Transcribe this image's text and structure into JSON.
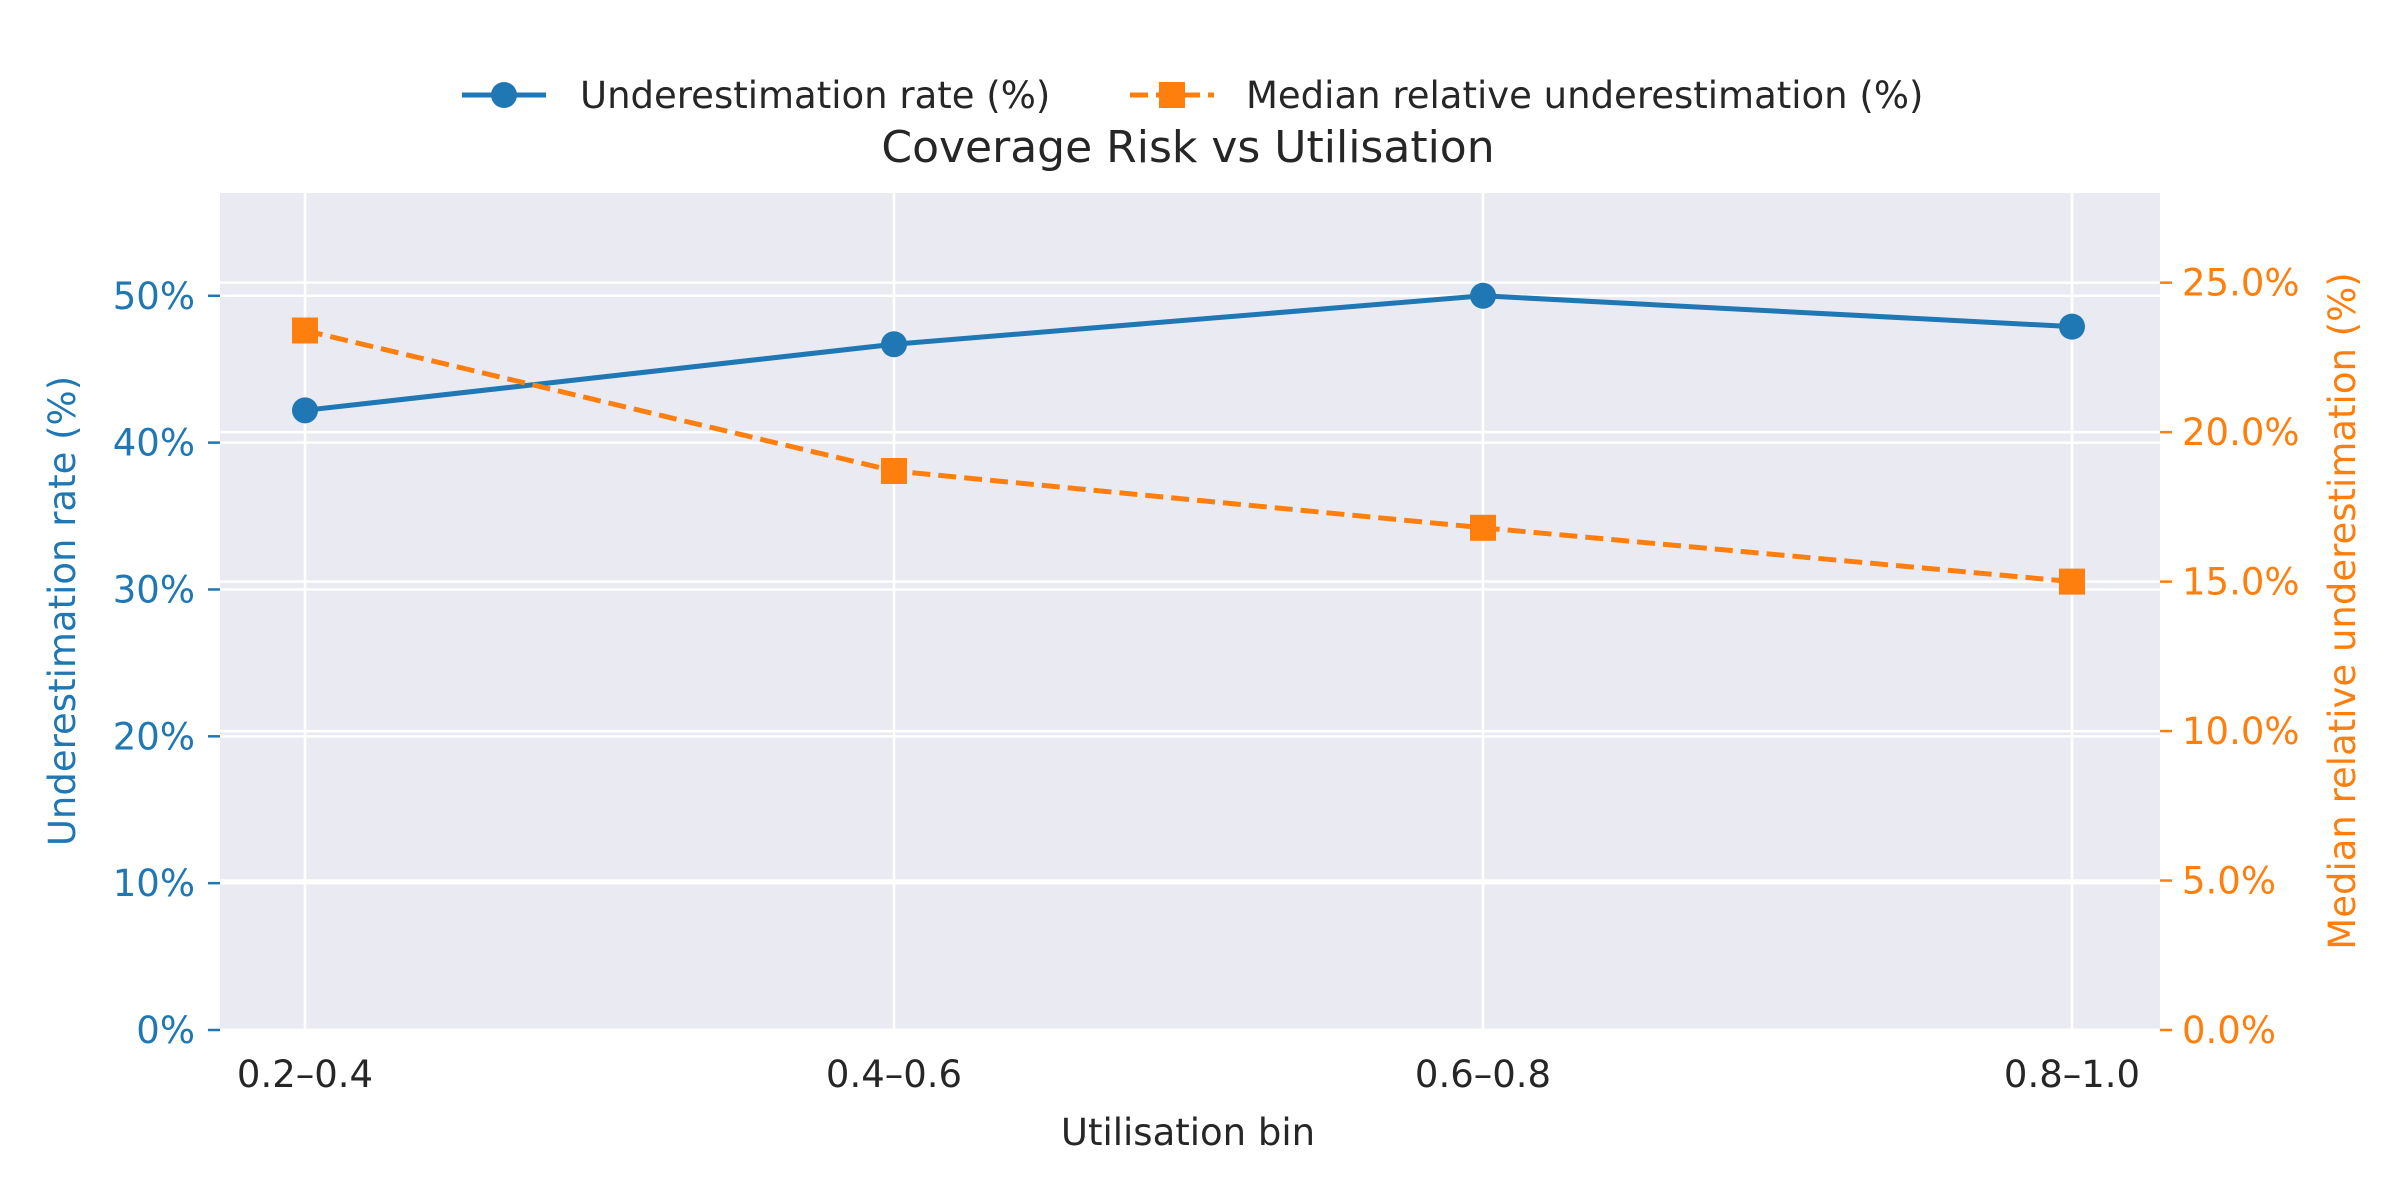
{
  "chart_data": {
    "type": "line",
    "title": "Coverage Risk vs Utilisation",
    "xlabel": "Utilisation bin",
    "categories": [
      "0.2–0.4",
      "0.4–0.6",
      "0.6–0.8",
      "0.8–1.0"
    ],
    "y_left": {
      "label": "Underestimation rate (%)",
      "range": [
        0,
        57
      ],
      "ticks": [
        0,
        10,
        20,
        30,
        40,
        50
      ],
      "tick_labels": [
        "0%",
        "10%",
        "20%",
        "30%",
        "40%",
        "50%"
      ],
      "color": "#1f77b4"
    },
    "y_right": {
      "label": "Median relative underestimation (%)",
      "range": [
        0,
        28
      ],
      "ticks": [
        0,
        5,
        10,
        15,
        20,
        25
      ],
      "tick_labels": [
        "0.0%",
        "5.0%",
        "10.0%",
        "15.0%",
        "20.0%",
        "25.0%"
      ],
      "color": "#ff7f0e"
    },
    "series": [
      {
        "name": "Underestimation rate (%)",
        "axis": "left",
        "values": [
          42.2,
          46.7,
          50.0,
          47.9
        ],
        "color": "#1f77b4",
        "line_style": "solid",
        "marker": "circle"
      },
      {
        "name": "Median relative underestimation (%)",
        "axis": "right",
        "values": [
          23.4,
          18.7,
          16.8,
          15.0
        ],
        "color": "#ff7f0e",
        "line_style": "dashed",
        "marker": "square"
      }
    ],
    "grid": true,
    "legend_position": "top-center",
    "background": "#eaeaf2"
  }
}
